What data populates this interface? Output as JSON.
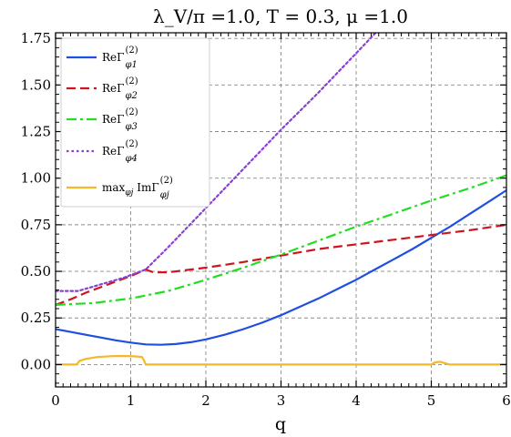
{
  "chart_data": {
    "type": "line",
    "title": "λ_V/π =1.0, T = 0.3, μ =1.0",
    "xlabel": "q",
    "ylabel": "",
    "xlim": [
      0,
      6
    ],
    "ylim": [
      -0.12,
      1.78
    ],
    "x_ticks": [
      "0",
      "1",
      "2",
      "3",
      "4",
      "5",
      "6"
    ],
    "y_ticks": [
      "0.00",
      "0.25",
      "0.50",
      "0.75",
      "1.00",
      "1.25",
      "1.50",
      "1.75"
    ],
    "grid": true,
    "legend_position": "top-left",
    "series": [
      {
        "name": "ReΓ(2)φ1",
        "legend_main": "ReΓ",
        "legend_sup": "(2)",
        "legend_sub": "φ1",
        "color": "#1f4fe0",
        "dash": "solid",
        "points": [
          [
            0,
            0.19
          ],
          [
            0.2,
            0.175
          ],
          [
            0.4,
            0.16
          ],
          [
            0.6,
            0.145
          ],
          [
            0.8,
            0.13
          ],
          [
            1.0,
            0.118
          ],
          [
            1.2,
            0.108
          ],
          [
            1.4,
            0.106
          ],
          [
            1.6,
            0.11
          ],
          [
            1.8,
            0.12
          ],
          [
            2.0,
            0.135
          ],
          [
            2.25,
            0.16
          ],
          [
            2.5,
            0.19
          ],
          [
            2.75,
            0.225
          ],
          [
            3.0,
            0.265
          ],
          [
            3.25,
            0.31
          ],
          [
            3.5,
            0.355
          ],
          [
            3.75,
            0.405
          ],
          [
            4.0,
            0.455
          ],
          [
            4.25,
            0.51
          ],
          [
            4.5,
            0.565
          ],
          [
            4.75,
            0.62
          ],
          [
            5.0,
            0.68
          ],
          [
            5.25,
            0.74
          ],
          [
            5.5,
            0.805
          ],
          [
            5.75,
            0.87
          ],
          [
            6.0,
            0.935
          ]
        ]
      },
      {
        "name": "ReΓ(2)φ2",
        "legend_main": "ReΓ",
        "legend_sup": "(2)",
        "legend_sub": "φ2",
        "color": "#d0141e",
        "dash": "dashed",
        "points": [
          [
            0,
            0.32
          ],
          [
            0.2,
            0.35
          ],
          [
            0.4,
            0.385
          ],
          [
            0.6,
            0.415
          ],
          [
            0.8,
            0.445
          ],
          [
            1.0,
            0.475
          ],
          [
            1.2,
            0.51
          ],
          [
            1.3,
            0.495
          ],
          [
            1.5,
            0.495
          ],
          [
            2.0,
            0.52
          ],
          [
            2.5,
            0.55
          ],
          [
            3.0,
            0.585
          ],
          [
            3.5,
            0.62
          ],
          [
            4.0,
            0.645
          ],
          [
            4.5,
            0.67
          ],
          [
            5.0,
            0.695
          ],
          [
            5.5,
            0.72
          ],
          [
            6.0,
            0.75
          ]
        ]
      },
      {
        "name": "ReΓ(2)φ3",
        "legend_main": "ReΓ",
        "legend_sup": "(2)",
        "legend_sub": "φ3",
        "color": "#22dd22",
        "dash": "dashdot",
        "points": [
          [
            0,
            0.32
          ],
          [
            0.5,
            0.33
          ],
          [
            1.0,
            0.355
          ],
          [
            1.5,
            0.395
          ],
          [
            2.0,
            0.455
          ],
          [
            2.5,
            0.52
          ],
          [
            3.0,
            0.59
          ],
          [
            3.5,
            0.665
          ],
          [
            4.0,
            0.74
          ],
          [
            4.5,
            0.81
          ],
          [
            5.0,
            0.88
          ],
          [
            5.5,
            0.945
          ],
          [
            6.0,
            1.015
          ]
        ]
      },
      {
        "name": "ReΓ(2)φ4",
        "legend_main": "ReΓ",
        "legend_sup": "(2)",
        "legend_sub": "φ4",
        "color": "#8a3fd6",
        "dash": "dotted",
        "points": [
          [
            0,
            0.395
          ],
          [
            0.3,
            0.395
          ],
          [
            0.6,
            0.43
          ],
          [
            0.9,
            0.465
          ],
          [
            1.2,
            0.51
          ],
          [
            1.5,
            0.63
          ],
          [
            2.0,
            0.84
          ],
          [
            2.5,
            1.05
          ],
          [
            3.0,
            1.26
          ],
          [
            3.5,
            1.46
          ],
          [
            4.0,
            1.67
          ],
          [
            4.26,
            1.78
          ]
        ]
      },
      {
        "name": "max Im",
        "legend_main": "max",
        "legend_sub2": "φj",
        "legend_main2": " ImΓ",
        "legend_sup": "(2)",
        "legend_sub": "φj",
        "color": "#f5b829",
        "dash": "solid",
        "points": [
          [
            0,
            0.0
          ],
          [
            0.28,
            0.0
          ],
          [
            0.32,
            0.02
          ],
          [
            0.4,
            0.03
          ],
          [
            0.55,
            0.04
          ],
          [
            0.75,
            0.045
          ],
          [
            0.9,
            0.046
          ],
          [
            1.05,
            0.044
          ],
          [
            1.15,
            0.04
          ],
          [
            1.18,
            0.02
          ],
          [
            1.2,
            0.0
          ],
          [
            5.0,
            0.0
          ],
          [
            5.05,
            0.012
          ],
          [
            5.12,
            0.015
          ],
          [
            5.2,
            0.005
          ],
          [
            5.25,
            0.0
          ],
          [
            6.0,
            0.0
          ]
        ]
      }
    ]
  }
}
